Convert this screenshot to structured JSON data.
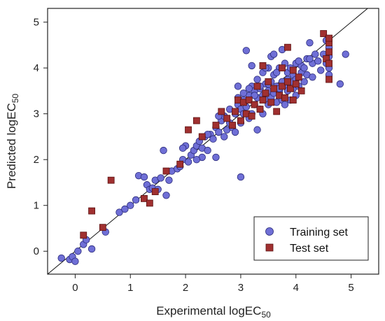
{
  "chart_data": {
    "type": "scatter",
    "xlabel": "Experimental logEC",
    "xlabel_sub": "50",
    "ylabel": "Predicted logEC",
    "ylabel_sub": "50",
    "xlim": [
      -0.5,
      5.5
    ],
    "ylim": [
      -0.5,
      5.3
    ],
    "x_ticks": [
      "0",
      "1",
      "2",
      "3",
      "4",
      "5"
    ],
    "y_ticks": [
      "0",
      "1",
      "2",
      "3",
      "4",
      "5"
    ],
    "grid": false,
    "legend_position": "bottom-right",
    "identity_line": true,
    "series": [
      {
        "name": "Training set",
        "marker": "circle",
        "color": "#6f6fd6",
        "edge": "#2a2a7a",
        "points": [
          [
            -0.25,
            -0.15
          ],
          [
            -0.1,
            -0.18
          ],
          [
            -0.05,
            -0.12
          ],
          [
            0.0,
            -0.22
          ],
          [
            0.05,
            0.0
          ],
          [
            0.15,
            0.15
          ],
          [
            0.2,
            0.25
          ],
          [
            0.3,
            0.05
          ],
          [
            0.55,
            0.42
          ],
          [
            0.8,
            0.85
          ],
          [
            0.9,
            0.92
          ],
          [
            1.0,
            1.0
          ],
          [
            1.1,
            1.12
          ],
          [
            1.15,
            1.65
          ],
          [
            1.25,
            1.62
          ],
          [
            1.3,
            1.45
          ],
          [
            1.35,
            1.35
          ],
          [
            1.4,
            1.38
          ],
          [
            1.45,
            1.55
          ],
          [
            1.5,
            1.35
          ],
          [
            1.55,
            1.6
          ],
          [
            1.6,
            2.2
          ],
          [
            1.65,
            1.22
          ],
          [
            1.7,
            1.55
          ],
          [
            1.75,
            1.75
          ],
          [
            1.85,
            1.8
          ],
          [
            1.9,
            1.85
          ],
          [
            1.95,
            2.0
          ],
          [
            2.0,
            2.3
          ],
          [
            2.05,
            1.95
          ],
          [
            2.1,
            2.1
          ],
          [
            2.15,
            2.2
          ],
          [
            2.2,
            2.3
          ],
          [
            2.25,
            2.4
          ],
          [
            2.3,
            2.25
          ],
          [
            2.35,
            2.5
          ],
          [
            2.4,
            2.2
          ],
          [
            2.45,
            2.55
          ],
          [
            2.5,
            2.45
          ],
          [
            2.55,
            2.05
          ],
          [
            2.55,
            2.7
          ],
          [
            2.6,
            2.6
          ],
          [
            2.65,
            2.85
          ],
          [
            2.7,
            2.5
          ],
          [
            2.7,
            2.95
          ],
          [
            2.75,
            2.65
          ],
          [
            2.8,
            3.1
          ],
          [
            2.8,
            2.8
          ],
          [
            2.85,
            2.7
          ],
          [
            2.9,
            3.0
          ],
          [
            2.9,
            2.6
          ],
          [
            2.95,
            3.2
          ],
          [
            2.95,
            3.6
          ],
          [
            3.0,
            3.1
          ],
          [
            3.0,
            1.62
          ],
          [
            3.0,
            2.8
          ],
          [
            3.05,
            3.3
          ],
          [
            3.05,
            3.0
          ],
          [
            3.1,
            4.38
          ],
          [
            3.1,
            3.15
          ],
          [
            3.15,
            3.4
          ],
          [
            3.15,
            2.9
          ],
          [
            3.2,
            3.6
          ],
          [
            3.2,
            3.0
          ],
          [
            3.25,
            3.5
          ],
          [
            3.25,
            3.2
          ],
          [
            3.3,
            3.75
          ],
          [
            3.3,
            2.65
          ],
          [
            3.3,
            3.35
          ],
          [
            3.35,
            3.55
          ],
          [
            3.35,
            3.1
          ],
          [
            3.4,
            3.9
          ],
          [
            3.4,
            3.4
          ],
          [
            3.4,
            3.0
          ],
          [
            3.45,
            3.65
          ],
          [
            3.45,
            3.3
          ],
          [
            3.5,
            4.0
          ],
          [
            3.5,
            3.5
          ],
          [
            3.5,
            3.2
          ],
          [
            3.55,
            4.25
          ],
          [
            3.55,
            3.7
          ],
          [
            3.55,
            3.35
          ],
          [
            3.6,
            3.85
          ],
          [
            3.6,
            3.45
          ],
          [
            3.6,
            4.3
          ],
          [
            3.65,
            3.6
          ],
          [
            3.65,
            3.25
          ],
          [
            3.7,
            4.0
          ],
          [
            3.7,
            3.5
          ],
          [
            3.75,
            4.4
          ],
          [
            3.75,
            3.7
          ],
          [
            3.75,
            3.3
          ],
          [
            3.8,
            4.1
          ],
          [
            3.8,
            3.6
          ],
          [
            3.8,
            3.2
          ],
          [
            3.85,
            3.9
          ],
          [
            3.85,
            3.5
          ],
          [
            3.9,
            4.0
          ],
          [
            3.9,
            3.7
          ],
          [
            3.9,
            3.3
          ],
          [
            3.95,
            3.85
          ],
          [
            3.95,
            3.55
          ],
          [
            4.0,
            4.1
          ],
          [
            4.0,
            3.75
          ],
          [
            4.0,
            3.4
          ],
          [
            4.05,
            3.6
          ],
          [
            4.1,
            3.9
          ],
          [
            4.1,
            4.05
          ],
          [
            4.15,
            3.7
          ],
          [
            4.15,
            4.0
          ],
          [
            4.2,
            4.2
          ],
          [
            4.2,
            3.85
          ],
          [
            4.25,
            4.55
          ],
          [
            4.3,
            4.1
          ],
          [
            4.3,
            3.8
          ],
          [
            4.35,
            4.3
          ],
          [
            4.4,
            4.15
          ],
          [
            4.45,
            3.95
          ],
          [
            4.5,
            4.3
          ],
          [
            4.55,
            4.6
          ],
          [
            4.6,
            3.85
          ],
          [
            4.6,
            4.25
          ],
          [
            4.6,
            4.45
          ],
          [
            4.6,
            4.0
          ],
          [
            4.8,
            3.65
          ],
          [
            4.9,
            4.3
          ],
          [
            3.45,
            4.0
          ],
          [
            3.2,
            4.05
          ],
          [
            2.95,
            3.35
          ],
          [
            3.05,
            3.45
          ],
          [
            3.35,
            3.6
          ],
          [
            3.15,
            3.55
          ],
          [
            3.25,
            3.4
          ],
          [
            3.5,
            3.65
          ],
          [
            3.65,
            3.9
          ],
          [
            4.05,
            4.15
          ],
          [
            3.85,
            3.75
          ],
          [
            4.25,
            4.2
          ],
          [
            4.55,
            4.1
          ],
          [
            3.7,
            3.55
          ],
          [
            2.6,
            2.95
          ],
          [
            2.4,
            2.55
          ],
          [
            2.3,
            2.05
          ],
          [
            1.95,
            2.25
          ],
          [
            2.2,
            2.0
          ]
        ]
      },
      {
        "name": "Test set",
        "marker": "square",
        "color": "#a03030",
        "edge": "#5a1010",
        "points": [
          [
            0.15,
            0.35
          ],
          [
            0.3,
            0.88
          ],
          [
            0.5,
            0.52
          ],
          [
            0.65,
            1.55
          ],
          [
            1.25,
            1.15
          ],
          [
            1.35,
            1.05
          ],
          [
            1.45,
            1.3
          ],
          [
            1.65,
            1.75
          ],
          [
            1.9,
            1.9
          ],
          [
            2.05,
            2.65
          ],
          [
            2.2,
            2.85
          ],
          [
            2.3,
            2.5
          ],
          [
            2.55,
            2.75
          ],
          [
            2.65,
            3.05
          ],
          [
            2.75,
            2.9
          ],
          [
            2.85,
            2.75
          ],
          [
            2.9,
            3.05
          ],
          [
            2.95,
            3.3
          ],
          [
            3.0,
            2.85
          ],
          [
            3.05,
            3.25
          ],
          [
            3.1,
            3.0
          ],
          [
            3.15,
            3.3
          ],
          [
            3.25,
            3.2
          ],
          [
            3.3,
            3.6
          ],
          [
            3.35,
            3.1
          ],
          [
            3.4,
            4.05
          ],
          [
            3.45,
            3.45
          ],
          [
            3.55,
            3.25
          ],
          [
            3.6,
            3.55
          ],
          [
            3.7,
            3.4
          ],
          [
            3.75,
            3.6
          ],
          [
            3.8,
            3.35
          ],
          [
            3.85,
            4.45
          ],
          [
            3.85,
            3.7
          ],
          [
            3.9,
            3.55
          ],
          [
            3.95,
            3.3
          ],
          [
            4.0,
            3.65
          ],
          [
            4.05,
            3.8
          ],
          [
            4.1,
            3.5
          ],
          [
            4.5,
            4.75
          ],
          [
            4.55,
            4.2
          ],
          [
            4.6,
            4.55
          ],
          [
            4.6,
            4.35
          ],
          [
            4.6,
            4.1
          ],
          [
            4.6,
            3.75
          ],
          [
            4.6,
            4.65
          ],
          [
            3.65,
            3.05
          ],
          [
            3.4,
            3.3
          ],
          [
            3.2,
            2.95
          ],
          [
            3.75,
            4.0
          ],
          [
            3.5,
            3.7
          ],
          [
            3.95,
            3.95
          ]
        ]
      }
    ]
  }
}
